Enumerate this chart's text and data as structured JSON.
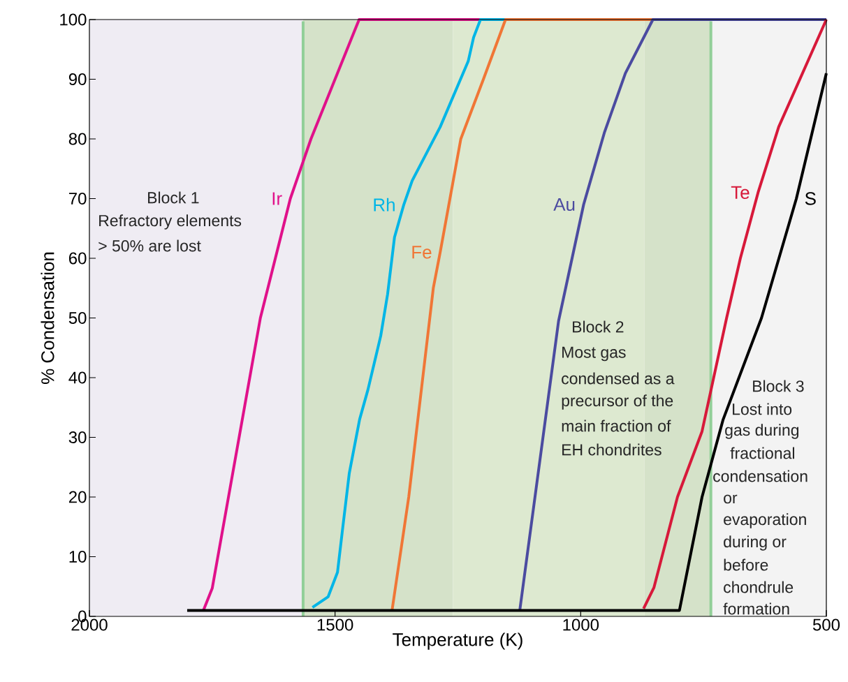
{
  "chart_data": {
    "type": "line",
    "xlabel": "Temperature (K)",
    "ylabel": "% Condensation",
    "xlim": [
      2000,
      500
    ],
    "ylim": [
      0,
      100
    ],
    "xticks": [
      2000,
      1500,
      1000,
      500
    ],
    "yticks": [
      0,
      10,
      20,
      30,
      40,
      50,
      60,
      70,
      80,
      90,
      100
    ],
    "grid": false,
    "marker": "none",
    "line_style": "solid",
    "series": [
      {
        "name": "Ir",
        "color": "#e0118a",
        "x": [
          1768,
          1750,
          1652,
          1591,
          1549,
          1451,
          500
        ],
        "values": [
          1,
          4.7,
          50,
          70,
          80,
          100,
          100
        ]
      },
      {
        "name": "Rh",
        "color": "#00b5e6",
        "x": [
          1546,
          1514,
          1495,
          1485,
          1471,
          1450,
          1433,
          1407,
          1393,
          1379,
          1360,
          1343,
          1286,
          1229,
          1218,
          1204,
          500
        ],
        "values": [
          1.5,
          3.3,
          7.4,
          14.4,
          24,
          33,
          38,
          47,
          54,
          63.5,
          69,
          73,
          82,
          93,
          97,
          100,
          100
        ]
      },
      {
        "name": "Fe",
        "color": "#f07636",
        "x": [
          1384,
          1350,
          1300,
          1286,
          1244,
          1198,
          1153,
          500
        ],
        "values": [
          1,
          20,
          55,
          61,
          80,
          90,
          100,
          100
        ]
      },
      {
        "name": "Au",
        "color": "#4b4ba0",
        "x": [
          1124,
          1045,
          994,
          952,
          909,
          853,
          500
        ],
        "values": [
          1,
          49.5,
          69,
          81,
          91,
          100,
          100
        ]
      },
      {
        "name": "Te",
        "color": "#d7193a",
        "x": [
          872,
          851,
          803,
          753,
          703,
          675,
          639,
          597,
          500
        ],
        "values": [
          1.3,
          4.8,
          20,
          31,
          50,
          60,
          71,
          82,
          100
        ]
      },
      {
        "name": "S",
        "color": "#000000",
        "x": [
          1801,
          799,
          753,
          710,
          632,
          561,
          500
        ],
        "values": [
          1,
          1,
          20,
          33,
          50,
          70,
          91
        ]
      }
    ],
    "bands": [
      {
        "axis": "x",
        "from": 2000,
        "to": 1565,
        "color": "#efecf3"
      },
      {
        "axis": "x",
        "from": 1565,
        "to": 1260,
        "color": "#d5e2c9"
      },
      {
        "axis": "x",
        "from": 1260,
        "to": 870,
        "color": "#dde9d0"
      },
      {
        "axis": "x",
        "from": 870,
        "to": 735,
        "color": "#d5e2c9"
      },
      {
        "axis": "x",
        "from": 735,
        "to": 500,
        "color": "#f3f3f3"
      }
    ],
    "ref_lines": [
      {
        "axis": "x",
        "value": 1565,
        "color": "#92cf98"
      },
      {
        "axis": "x",
        "value": 735,
        "color": "#92cf98"
      }
    ],
    "annotations": [
      "Block 1",
      "Refractory elements",
      "> 50% are lost",
      "Block 2",
      "Most gas",
      "condensed as a",
      "precursor of the",
      "main fraction of",
      "EH chondrites",
      "Block 3",
      "Lost into",
      "gas during",
      "fractional",
      "condensation",
      "or",
      "evaporation",
      "during or",
      "before",
      "chondrule",
      "formation"
    ]
  }
}
